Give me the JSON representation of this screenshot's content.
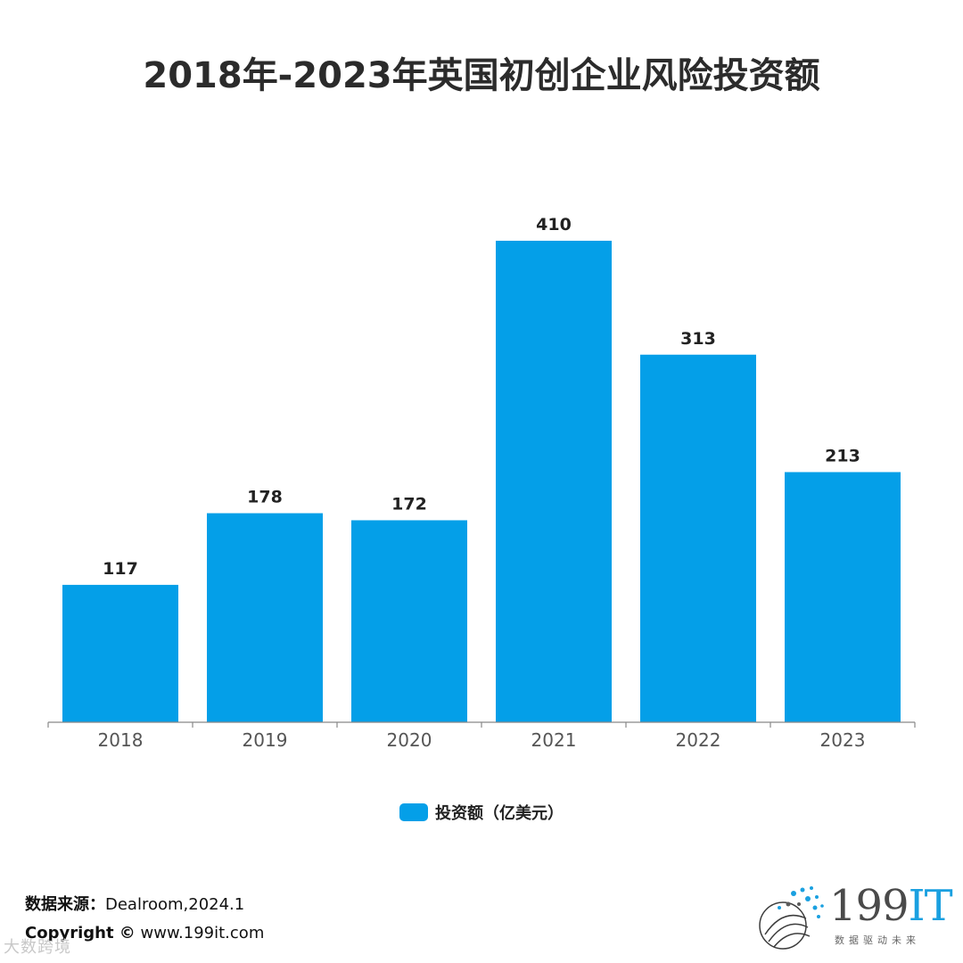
{
  "chart_data": {
    "type": "bar",
    "title": "2018年-2023年英国初创企业风险投资额",
    "categories": [
      "2018",
      "2019",
      "2020",
      "2021",
      "2022",
      "2023"
    ],
    "series": [
      {
        "name": "投资额（亿美元）",
        "values": [
          117,
          178,
          172,
          410,
          313,
          213
        ]
      }
    ],
    "ylim": [
      0,
      410
    ],
    "grid": false,
    "legend_position": "bottom-center",
    "bar_color": "#049fe8"
  },
  "footer": {
    "source_label": "数据来源：",
    "source_value": "Dealroom,2024.1",
    "copyright_label": "Copyright ©",
    "copyright_value": " www.199it.com",
    "watermark": "大数跨境"
  },
  "logo": {
    "brand_number": "199",
    "brand_letters": "IT",
    "tagline": "数据驱动未来"
  }
}
